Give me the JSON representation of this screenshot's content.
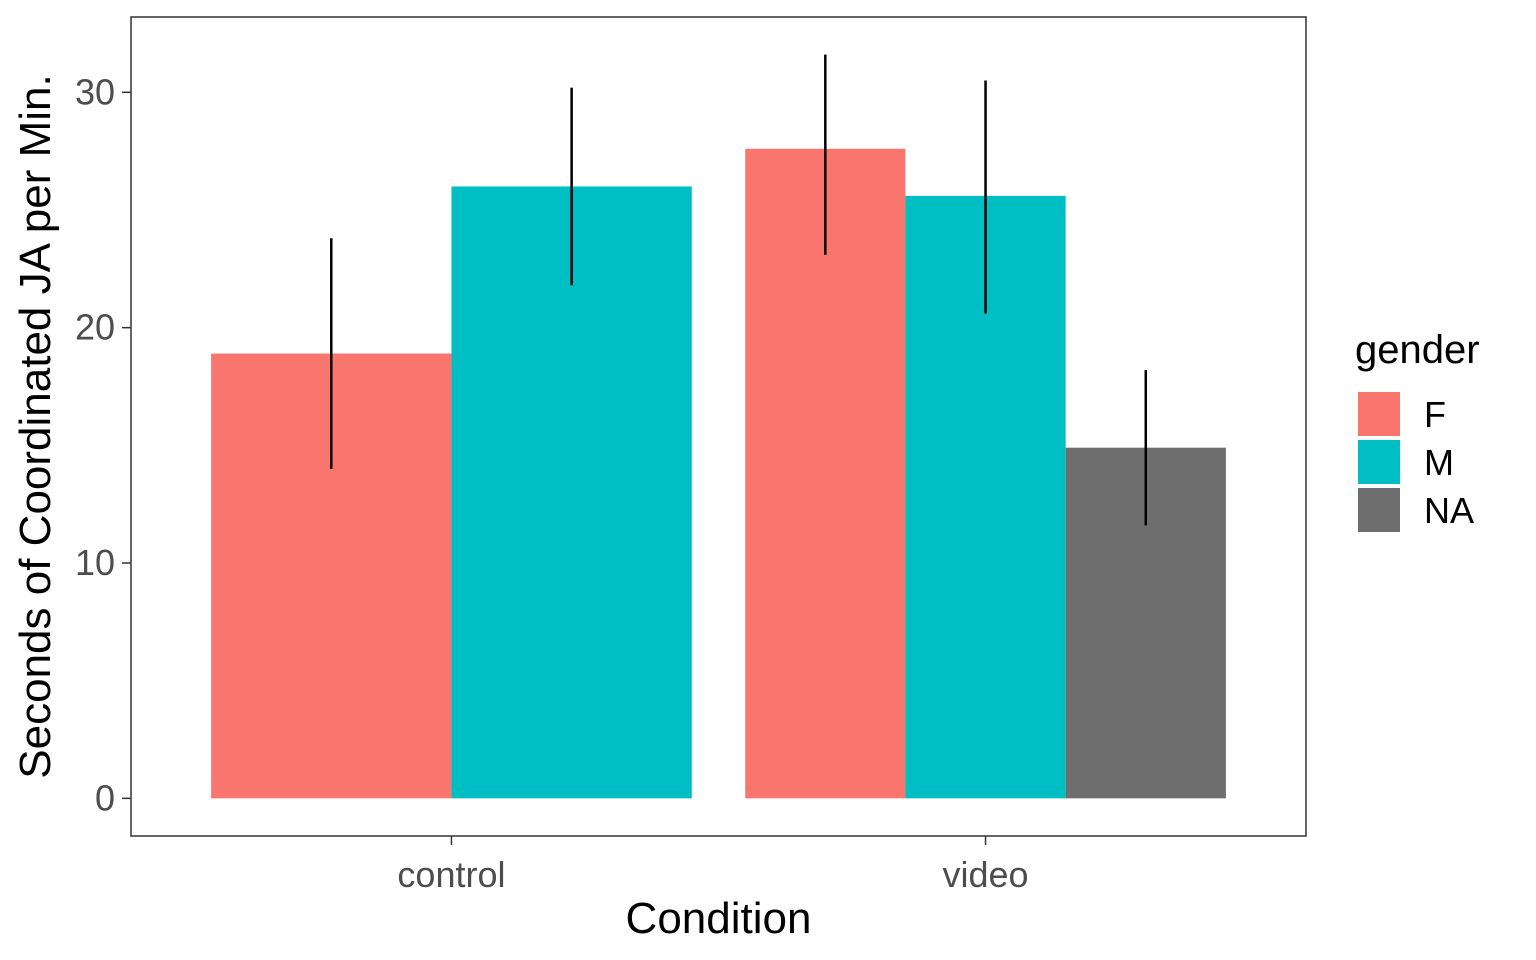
{
  "chart_data": {
    "type": "bar",
    "title": "",
    "xlabel": "Condition",
    "ylabel": "Seconds of Coordinated JA per Min.",
    "categories": [
      "control",
      "video"
    ],
    "y_ticks": [
      0,
      10,
      20,
      30
    ],
    "ylim": [
      -1.6,
      33.2
    ],
    "grid": false,
    "legend": {
      "title": "gender",
      "position": "right",
      "entries": [
        {
          "label": "F",
          "color": "#F8766D"
        },
        {
          "label": "M",
          "color": "#00BFC4"
        },
        {
          "label": "NA",
          "color": "#6E6E6E"
        }
      ]
    },
    "bars": [
      {
        "category": "control",
        "group": "F",
        "value": 18.9,
        "error_low": 14.0,
        "error_high": 23.8,
        "color": "#F8766D"
      },
      {
        "category": "control",
        "group": "M",
        "value": 26.0,
        "error_low": 21.8,
        "error_high": 30.2,
        "color": "#00BFC4"
      },
      {
        "category": "video",
        "group": "F",
        "value": 27.6,
        "error_low": 23.1,
        "error_high": 31.6,
        "color": "#F8766D"
      },
      {
        "category": "video",
        "group": "M",
        "value": 25.6,
        "error_low": 20.6,
        "error_high": 30.5,
        "color": "#00BFC4"
      },
      {
        "category": "video",
        "group": "NA",
        "value": 14.9,
        "error_low": 11.6,
        "error_high": 18.2,
        "color": "#6E6E6E"
      }
    ]
  }
}
